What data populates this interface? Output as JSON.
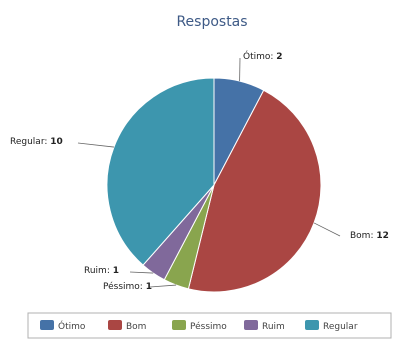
{
  "chart_data": {
    "type": "pie",
    "title": "Respostas",
    "categories": [
      "Ótimo",
      "Bom",
      "Péssimo",
      "Ruim",
      "Regular"
    ],
    "values": [
      2,
      12,
      1,
      1,
      10
    ],
    "colors": [
      "#4572a7",
      "#aa4643",
      "#89a54e",
      "#80699b",
      "#3d96ae"
    ],
    "start_angle_deg": 0,
    "direction": "clockwise",
    "legend_position": "bottom"
  }
}
